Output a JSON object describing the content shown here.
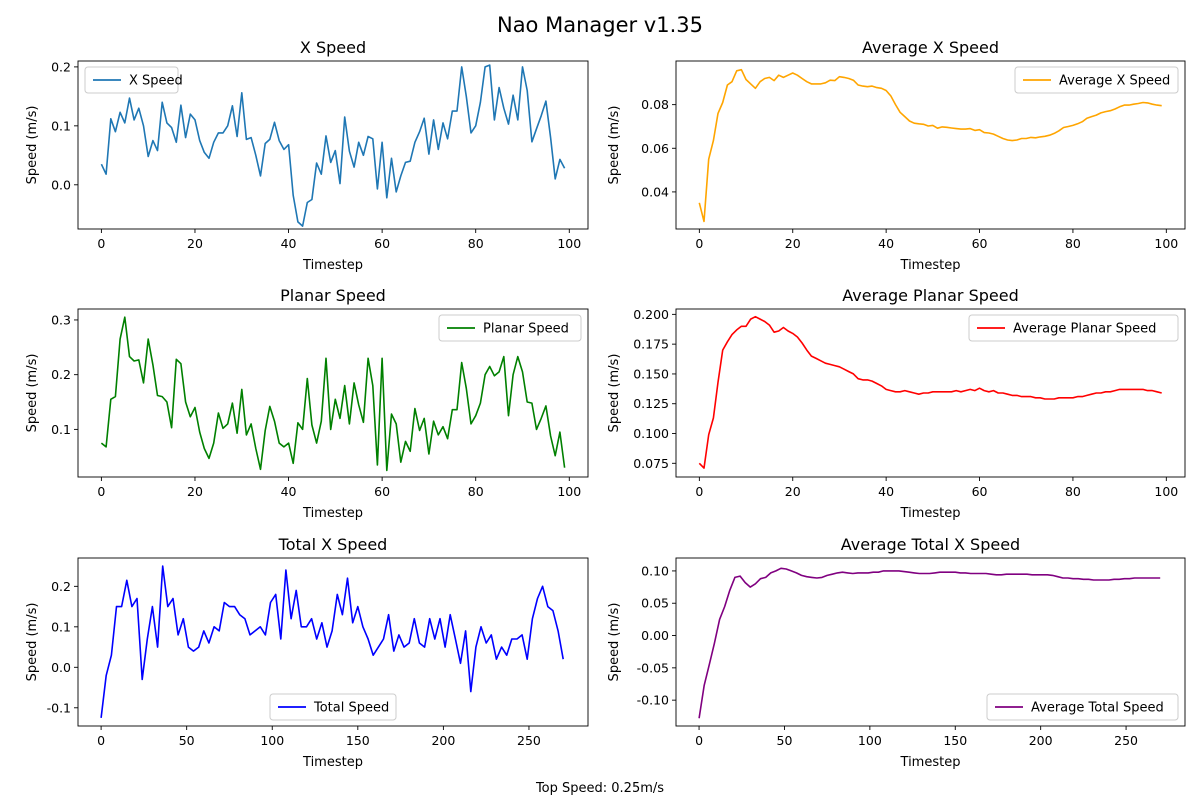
{
  "figure": {
    "title": "Nao Manager v1.35",
    "footer": "Top Speed: 0.25m/s"
  },
  "chart_data": [
    {
      "type": "line",
      "title": "X Speed",
      "xlabel": "Timestep",
      "ylabel": "Speed (m/s)",
      "xlim": [
        -5,
        104
      ],
      "ylim": [
        -0.075,
        0.21
      ],
      "xticks": [
        0,
        20,
        40,
        60,
        80,
        100
      ],
      "yticks": [
        0.0,
        0.1,
        0.2
      ],
      "ytick_decimals": 1,
      "legend": "top-left",
      "series": [
        {
          "name": "X Speed",
          "color": "#1f77b4",
          "x_start": 0,
          "x_step": 1,
          "values": [
            0.035,
            0.018,
            0.112,
            0.09,
            0.123,
            0.105,
            0.147,
            0.11,
            0.13,
            0.1,
            0.048,
            0.075,
            0.058,
            0.14,
            0.105,
            0.097,
            0.072,
            0.135,
            0.08,
            0.12,
            0.11,
            0.075,
            0.055,
            0.045,
            0.072,
            0.088,
            0.088,
            0.1,
            0.134,
            0.082,
            0.156,
            0.077,
            0.08,
            0.05,
            0.015,
            0.07,
            0.077,
            0.106,
            0.075,
            0.06,
            0.068,
            -0.018,
            -0.063,
            -0.07,
            -0.03,
            -0.025,
            0.037,
            0.018,
            0.083,
            0.038,
            0.058,
            0.002,
            0.115,
            0.057,
            0.03,
            0.072,
            0.05,
            0.082,
            0.078,
            -0.007,
            0.072,
            -0.022,
            0.045,
            -0.012,
            0.015,
            0.038,
            0.04,
            0.072,
            0.09,
            0.113,
            0.052,
            0.11,
            0.06,
            0.105,
            0.078,
            0.125,
            0.125,
            0.2,
            0.15,
            0.088,
            0.1,
            0.14,
            0.2,
            0.203,
            0.11,
            0.165,
            0.13,
            0.103,
            0.152,
            0.11,
            0.2,
            0.16,
            0.073,
            0.095,
            0.117,
            0.142,
            0.08,
            0.01,
            0.043,
            0.028
          ]
        }
      ]
    },
    {
      "type": "line",
      "title": "Average X Speed",
      "xlabel": "Timestep",
      "ylabel": "Speed (m/s)",
      "xlim": [
        -5,
        104
      ],
      "ylim": [
        0.023,
        0.1
      ],
      "xticks": [
        0,
        20,
        40,
        60,
        80,
        100
      ],
      "yticks": [
        0.04,
        0.06,
        0.08
      ],
      "ytick_decimals": 2,
      "legend": "top-right",
      "series": [
        {
          "name": "Average X Speed",
          "color": "#ffa500",
          "x_start": 0,
          "x_step": 1,
          "values": [
            0.035,
            0.0265,
            0.055,
            0.0635,
            0.076,
            0.081,
            0.089,
            0.0905,
            0.0955,
            0.096,
            0.0915,
            0.0895,
            0.0875,
            0.0905,
            0.092,
            0.0925,
            0.091,
            0.0935,
            0.0925,
            0.0935,
            0.0945,
            0.0935,
            0.092,
            0.0905,
            0.0895,
            0.0895,
            0.0895,
            0.09,
            0.0912,
            0.091,
            0.0928,
            0.0925,
            0.092,
            0.0912,
            0.089,
            0.0885,
            0.0882,
            0.0885,
            0.0878,
            0.0875,
            0.0865,
            0.084,
            0.08,
            0.0765,
            0.0745,
            0.0725,
            0.0715,
            0.0712,
            0.071,
            0.0702,
            0.0705,
            0.0692,
            0.0698,
            0.0696,
            0.0693,
            0.069,
            0.0688,
            0.0688,
            0.069,
            0.0682,
            0.0685,
            0.0672,
            0.067,
            0.0665,
            0.0655,
            0.0645,
            0.0638,
            0.0635,
            0.0638,
            0.0645,
            0.0645,
            0.065,
            0.0648,
            0.0652,
            0.0655,
            0.066,
            0.0668,
            0.068,
            0.0695,
            0.07,
            0.0705,
            0.0712,
            0.0722,
            0.0738,
            0.0745,
            0.0752,
            0.0762,
            0.0768,
            0.0772,
            0.078,
            0.079,
            0.0798,
            0.0798,
            0.0802,
            0.0805,
            0.081,
            0.0808,
            0.0802,
            0.0798,
            0.0795
          ]
        }
      ]
    },
    {
      "type": "line",
      "title": "Planar Speed",
      "xlabel": "Timestep",
      "ylabel": "Speed (m/s)",
      "xlim": [
        -5,
        104
      ],
      "ylim": [
        0.013,
        0.32
      ],
      "xticks": [
        0,
        20,
        40,
        60,
        80,
        100
      ],
      "yticks": [
        0.1,
        0.2,
        0.3
      ],
      "ytick_decimals": 1,
      "legend": "top-right",
      "series": [
        {
          "name": "Planar Speed",
          "color": "#008000",
          "x_start": 0,
          "x_step": 1,
          "values": [
            0.075,
            0.068,
            0.155,
            0.16,
            0.265,
            0.305,
            0.233,
            0.225,
            0.227,
            0.185,
            0.265,
            0.218,
            0.162,
            0.16,
            0.15,
            0.103,
            0.228,
            0.22,
            0.15,
            0.123,
            0.14,
            0.095,
            0.065,
            0.047,
            0.075,
            0.13,
            0.102,
            0.11,
            0.148,
            0.093,
            0.173,
            0.09,
            0.11,
            0.065,
            0.027,
            0.098,
            0.142,
            0.115,
            0.075,
            0.068,
            0.075,
            0.038,
            0.112,
            0.1,
            0.193,
            0.108,
            0.075,
            0.115,
            0.23,
            0.1,
            0.155,
            0.12,
            0.18,
            0.11,
            0.185,
            0.145,
            0.113,
            0.23,
            0.18,
            0.035,
            0.23,
            0.025,
            0.128,
            0.11,
            0.04,
            0.078,
            0.06,
            0.138,
            0.098,
            0.12,
            0.055,
            0.115,
            0.09,
            0.105,
            0.083,
            0.136,
            0.136,
            0.222,
            0.175,
            0.11,
            0.125,
            0.148,
            0.2,
            0.215,
            0.198,
            0.205,
            0.233,
            0.125,
            0.2,
            0.233,
            0.205,
            0.15,
            0.148,
            0.1,
            0.12,
            0.143,
            0.088,
            0.052,
            0.095,
            0.03
          ]
        }
      ]
    },
    {
      "type": "line",
      "title": "Average Planar Speed",
      "xlabel": "Timestep",
      "ylabel": "Speed (m/s)",
      "xlim": [
        -5,
        104
      ],
      "ylim": [
        0.0635,
        0.2045
      ],
      "xticks": [
        0,
        20,
        40,
        60,
        80,
        100
      ],
      "yticks": [
        0.075,
        0.1,
        0.125,
        0.15,
        0.175,
        0.2
      ],
      "ytick_decimals": 3,
      "legend": "top-right",
      "series": [
        {
          "name": "Average Planar Speed",
          "color": "#ff0000",
          "x_start": 0,
          "x_step": 1,
          "values": [
            0.075,
            0.071,
            0.099,
            0.113,
            0.143,
            0.17,
            0.177,
            0.183,
            0.187,
            0.19,
            0.19,
            0.196,
            0.198,
            0.196,
            0.194,
            0.191,
            0.185,
            0.186,
            0.189,
            0.186,
            0.184,
            0.181,
            0.176,
            0.17,
            0.165,
            0.163,
            0.161,
            0.159,
            0.158,
            0.157,
            0.156,
            0.154,
            0.152,
            0.15,
            0.146,
            0.145,
            0.145,
            0.144,
            0.142,
            0.14,
            0.137,
            0.136,
            0.135,
            0.135,
            0.136,
            0.135,
            0.134,
            0.133,
            0.134,
            0.134,
            0.135,
            0.135,
            0.135,
            0.135,
            0.135,
            0.136,
            0.135,
            0.136,
            0.137,
            0.136,
            0.138,
            0.136,
            0.135,
            0.136,
            0.134,
            0.134,
            0.133,
            0.132,
            0.132,
            0.131,
            0.131,
            0.131,
            0.13,
            0.13,
            0.129,
            0.129,
            0.129,
            0.13,
            0.13,
            0.13,
            0.13,
            0.131,
            0.131,
            0.132,
            0.133,
            0.134,
            0.134,
            0.135,
            0.135,
            0.136,
            0.137,
            0.137,
            0.137,
            0.137,
            0.137,
            0.137,
            0.136,
            0.136,
            0.135,
            0.134
          ]
        }
      ]
    },
    {
      "type": "line",
      "title": "Total X Speed",
      "xlabel": "Timestep",
      "ylabel": "Speed (m/s)",
      "xlim": [
        -13.5,
        284.5
      ],
      "ylim": [
        -0.145,
        0.27
      ],
      "xticks": [
        0,
        50,
        100,
        150,
        200,
        250
      ],
      "yticks": [
        -0.1,
        0.0,
        0.1,
        0.2
      ],
      "ytick_decimals": 1,
      "legend": "bottom-center",
      "series": [
        {
          "name": "Total Speed",
          "color": "#0000ff",
          "x_start": 0,
          "x_step": 3,
          "values": [
            -0.125,
            -0.02,
            0.03,
            0.15,
            0.15,
            0.215,
            0.15,
            0.17,
            -0.03,
            0.07,
            0.15,
            0.05,
            0.25,
            0.15,
            0.17,
            0.08,
            0.12,
            0.05,
            0.04,
            0.05,
            0.09,
            0.06,
            0.1,
            0.09,
            0.16,
            0.15,
            0.15,
            0.13,
            0.12,
            0.08,
            0.09,
            0.1,
            0.08,
            0.16,
            0.18,
            0.07,
            0.24,
            0.12,
            0.19,
            0.1,
            0.1,
            0.12,
            0.07,
            0.11,
            0.05,
            0.09,
            0.18,
            0.13,
            0.22,
            0.11,
            0.15,
            0.1,
            0.07,
            0.03,
            0.05,
            0.07,
            0.13,
            0.04,
            0.08,
            0.05,
            0.06,
            0.12,
            0.06,
            0.05,
            0.12,
            0.07,
            0.12,
            0.05,
            0.13,
            0.07,
            0.01,
            0.09,
            -0.06,
            0.05,
            0.1,
            0.06,
            0.08,
            0.02,
            0.05,
            0.03,
            0.07,
            0.07,
            0.08,
            0.02,
            0.12,
            0.17,
            0.2,
            0.15,
            0.14,
            0.09,
            0.02
          ]
        }
      ]
    },
    {
      "type": "line",
      "title": "Average Total X Speed",
      "xlabel": "Timestep",
      "ylabel": "Speed (m/s)",
      "xlim": [
        -13.5,
        284.5
      ],
      "ylim": [
        -0.14,
        0.12
      ],
      "xticks": [
        0,
        50,
        100,
        150,
        200,
        250
      ],
      "yticks": [
        -0.1,
        -0.05,
        0.0,
        0.05,
        0.1
      ],
      "ytick_decimals": 2,
      "legend": "bottom-right",
      "series": [
        {
          "name": "Average Total Speed",
          "color": "#800080",
          "x_start": 0,
          "x_step": 3,
          "values": [
            -0.128,
            -0.077,
            -0.045,
            -0.012,
            0.025,
            0.045,
            0.07,
            0.09,
            0.092,
            0.082,
            0.075,
            0.08,
            0.088,
            0.09,
            0.097,
            0.1,
            0.104,
            0.103,
            0.1,
            0.097,
            0.093,
            0.091,
            0.09,
            0.089,
            0.09,
            0.093,
            0.095,
            0.097,
            0.098,
            0.097,
            0.096,
            0.097,
            0.097,
            0.097,
            0.098,
            0.098,
            0.1,
            0.1,
            0.1,
            0.1,
            0.099,
            0.098,
            0.097,
            0.096,
            0.096,
            0.096,
            0.097,
            0.098,
            0.098,
            0.098,
            0.098,
            0.097,
            0.097,
            0.096,
            0.096,
            0.096,
            0.096,
            0.095,
            0.094,
            0.094,
            0.095,
            0.095,
            0.095,
            0.095,
            0.095,
            0.094,
            0.094,
            0.094,
            0.094,
            0.093,
            0.091,
            0.089,
            0.089,
            0.088,
            0.088,
            0.087,
            0.087,
            0.086,
            0.086,
            0.086,
            0.086,
            0.087,
            0.087,
            0.088,
            0.088,
            0.089,
            0.089,
            0.089,
            0.089,
            0.089,
            0.089
          ]
        }
      ]
    }
  ]
}
